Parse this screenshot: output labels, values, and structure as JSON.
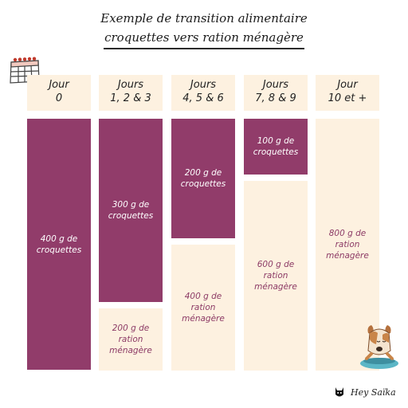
{
  "title": {
    "line1": "Exemple de transition alimentaire",
    "line2": "croquettes vers ration ménagère"
  },
  "columns": [
    {
      "header": [
        "Jour",
        "0"
      ],
      "blocks": [
        {
          "type": "kibble",
          "lines": [
            "400 g de",
            "croquettes"
          ]
        }
      ]
    },
    {
      "header": [
        "Jours",
        "1, 2 & 3"
      ],
      "blocks": [
        {
          "type": "kibble",
          "lines": [
            "300 g de",
            "croquettes"
          ]
        },
        {
          "type": "ration",
          "lines": [
            "200 g de",
            "ration",
            "ménagère"
          ]
        }
      ]
    },
    {
      "header": [
        "Jours",
        "4, 5 & 6"
      ],
      "blocks": [
        {
          "type": "kibble",
          "lines": [
            "200 g de",
            "croquettes"
          ]
        },
        {
          "type": "ration",
          "lines": [
            "400 g de",
            "ration",
            "ménagère"
          ]
        }
      ]
    },
    {
      "header": [
        "Jours",
        "7, 8 & 9"
      ],
      "blocks": [
        {
          "type": "kibble",
          "lines": [
            "100 g de",
            "croquettes"
          ]
        },
        {
          "type": "ration",
          "lines": [
            "600 g de",
            "ration",
            "ménagère"
          ]
        }
      ]
    },
    {
      "header": [
        "Jour",
        "10 et +"
      ],
      "blocks": [
        {
          "type": "ration",
          "lines": [
            "800 g de",
            "ration",
            "ménagère"
          ]
        }
      ]
    }
  ],
  "brand": {
    "name": "Hey Saïka"
  },
  "colors": {
    "kibble": "#913c6a",
    "ration": "#fdf1e0"
  },
  "icons": {
    "calendar": "calendar-icon",
    "dog": "dog-bowl-illustration",
    "cat": "cat-logo-icon"
  }
}
